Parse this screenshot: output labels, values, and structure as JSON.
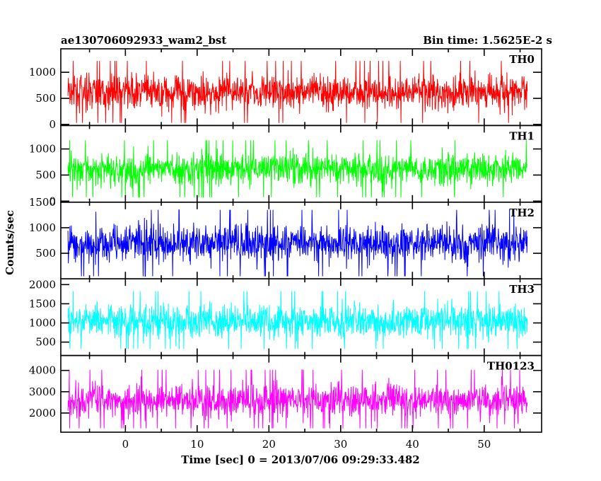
{
  "chart_data": {
    "type": "line",
    "title_left": "ae130706092933_wam2_bst",
    "title_right": "Bin time: 1.5625E-2 s",
    "xlabel": "Time [sec] 0 = 2013/07/06 09:29:33.482",
    "ylabel": "Counts/sec",
    "xlim": [
      -9,
      58
    ],
    "x_ticks": [
      0,
      10,
      20,
      30,
      40,
      50
    ],
    "x_range": [
      -8,
      56
    ],
    "bin_time": 0.015625,
    "panels": [
      {
        "name": "TH0",
        "color": "#ff0000",
        "ylim": [
          -20,
          1450
        ],
        "y_ticks": [
          0,
          500,
          1000
        ],
        "mean": 620,
        "spread": 230,
        "min": 30,
        "max": 1430
      },
      {
        "name": "TH1",
        "color": "#00ff00",
        "ylim": [
          -20,
          1450
        ],
        "y_ticks": [
          0,
          500,
          1000
        ],
        "mean": 620,
        "spread": 210,
        "min": 30,
        "max": 1410
      },
      {
        "name": "TH2",
        "color": "#0000ff",
        "ylim": [
          0,
          1500
        ],
        "y_ticks": [
          500,
          1000,
          1500
        ],
        "mean": 700,
        "spread": 250,
        "min": 20,
        "max": 1480
      },
      {
        "name": "TH3",
        "color": "#00ffff",
        "ylim": [
          150,
          2150
        ],
        "y_ticks": [
          500,
          1000,
          1500,
          2000
        ],
        "mean": 1050,
        "spread": 300,
        "min": 320,
        "max": 2080
      },
      {
        "name": "TH0123",
        "color": "#ff00ff",
        "ylim": [
          1100,
          4700
        ],
        "y_ticks": [
          2000,
          3000,
          4000
        ],
        "mean": 2600,
        "spread": 550,
        "min": 1280,
        "max": 4500
      }
    ]
  }
}
